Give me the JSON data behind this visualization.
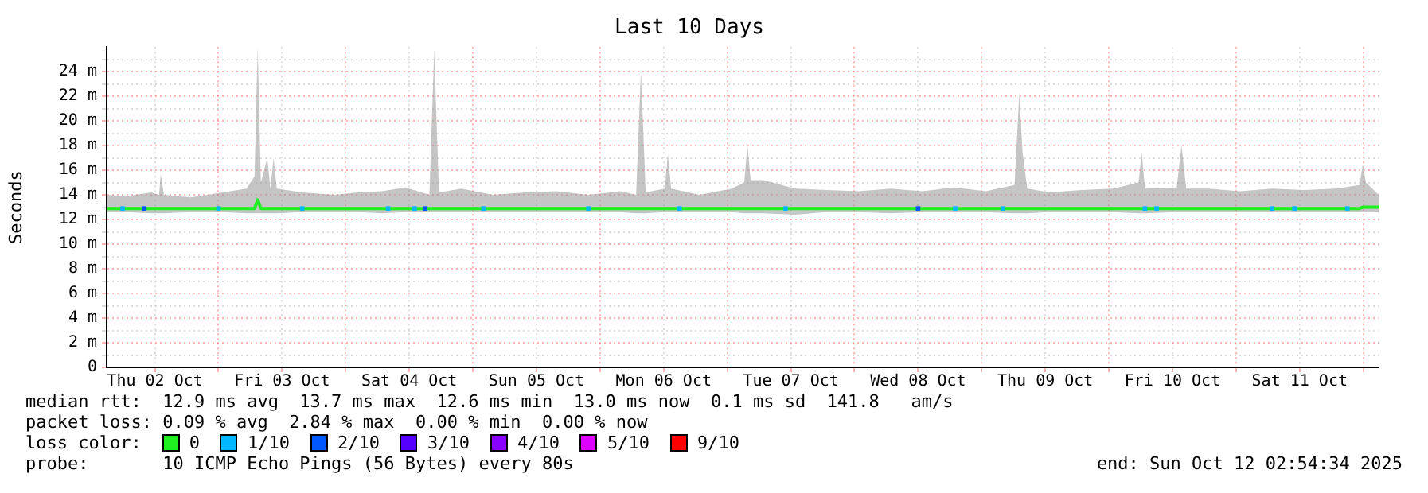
{
  "chart_data": {
    "type": "line",
    "title": "Last 10 Days",
    "ylabel": "Seconds",
    "legend_title": "loss color:",
    "legend": "bottom",
    "grid": true,
    "line_style": "solid",
    "marker": "none",
    "xlim": [
      "2025-10-02T02:54",
      "2025-10-12T02:54"
    ],
    "xticks": [
      {
        "value": "2025-10-02T12:00",
        "label": "Thu 02 Oct"
      },
      {
        "value": "2025-10-03T00:00",
        "label": null
      },
      {
        "value": "2025-10-03T12:00",
        "label": "Fri 03 Oct"
      },
      {
        "value": "2025-10-04T00:00",
        "label": null
      },
      {
        "value": "2025-10-04T12:00",
        "label": "Sat 04 Oct"
      },
      {
        "value": "2025-10-05T00:00",
        "label": null
      },
      {
        "value": "2025-10-05T12:00",
        "label": "Sun 05 Oct"
      },
      {
        "value": "2025-10-06T00:00",
        "label": null
      },
      {
        "value": "2025-10-06T12:00",
        "label": "Mon 06 Oct"
      },
      {
        "value": "2025-10-07T00:00",
        "label": null
      },
      {
        "value": "2025-10-07T12:00",
        "label": "Tue 07 Oct"
      },
      {
        "value": "2025-10-08T00:00",
        "label": null
      },
      {
        "value": "2025-10-08T12:00",
        "label": "Wed 08 Oct"
      },
      {
        "value": "2025-10-09T00:00",
        "label": null
      },
      {
        "value": "2025-10-09T12:00",
        "label": "Thu 09 Oct"
      },
      {
        "value": "2025-10-10T00:00",
        "label": null
      },
      {
        "value": "2025-10-10T12:00",
        "label": "Fri 10 Oct"
      },
      {
        "value": "2025-10-11T00:00",
        "label": null
      },
      {
        "value": "2025-10-11T12:00",
        "label": "Sat 11 Oct"
      },
      {
        "value": "2025-10-12T00:00",
        "label": null
      }
    ],
    "ylim": [
      0,
      26
    ],
    "yticks": [
      {
        "value": 0,
        "label": "0"
      },
      {
        "value": 1,
        "label": null
      },
      {
        "value": 2,
        "label": "2 m"
      },
      {
        "value": 3,
        "label": null
      },
      {
        "value": 4,
        "label": "4 m"
      },
      {
        "value": 5,
        "label": null
      },
      {
        "value": 6,
        "label": "6 m"
      },
      {
        "value": 7,
        "label": null
      },
      {
        "value": 8,
        "label": "8 m"
      },
      {
        "value": 9,
        "label": null
      },
      {
        "value": 10,
        "label": "10 m"
      },
      {
        "value": 11,
        "label": null
      },
      {
        "value": 12,
        "label": "12 m"
      },
      {
        "value": 13,
        "label": null
      },
      {
        "value": 14,
        "label": "14 m"
      },
      {
        "value": 15,
        "label": null
      },
      {
        "value": 16,
        "label": "16 m"
      },
      {
        "value": 17,
        "label": null
      },
      {
        "value": 18,
        "label": "18 m"
      },
      {
        "value": 19,
        "label": null
      },
      {
        "value": 20,
        "label": "20 m"
      },
      {
        "value": 21,
        "label": null
      },
      {
        "value": 22,
        "label": "22 m"
      },
      {
        "value": 23,
        "label": null
      },
      {
        "value": 24,
        "label": "24 m"
      },
      {
        "value": 25,
        "label": null
      }
    ],
    "x": [
      "2025-10-02T02:54",
      "2025-10-02T06:48",
      "2025-10-02T11:18",
      "2025-10-02T12:48",
      "2025-10-02T13:06",
      "2025-10-02T13:42",
      "2025-10-02T18:48",
      "2025-10-03T00:48",
      "2025-10-03T05:18",
      "2025-10-03T06:48",
      "2025-10-03T07:24",
      "2025-10-03T08:00",
      "2025-10-03T09:12",
      "2025-10-03T09:48",
      "2025-10-03T10:24",
      "2025-10-03T11:00",
      "2025-10-03T15:48",
      "2025-10-03T21:48",
      "2025-10-04T02:18",
      "2025-10-04T06:48",
      "2025-10-04T11:18",
      "2025-10-04T15:48",
      "2025-10-04T16:42",
      "2025-10-04T17:36",
      "2025-10-04T21:48",
      "2025-10-05T03:48",
      "2025-10-05T09:48",
      "2025-10-05T15:48",
      "2025-10-05T21:48",
      "2025-10-06T03:48",
      "2025-10-06T06:48",
      "2025-10-06T07:42",
      "2025-10-06T08:36",
      "2025-10-06T12:12",
      "2025-10-06T12:48",
      "2025-10-06T13:24",
      "2025-10-06T18:48",
      "2025-10-07T00:48",
      "2025-10-07T03:12",
      "2025-10-07T03:48",
      "2025-10-07T04:24",
      "2025-10-07T06:48",
      "2025-10-07T12:48",
      "2025-10-07T18:48",
      "2025-10-08T00:48",
      "2025-10-08T06:48",
      "2025-10-08T12:48",
      "2025-10-08T18:48",
      "2025-10-09T00:48",
      "2025-10-09T06:12",
      "2025-10-09T07:06",
      "2025-10-09T07:42",
      "2025-10-09T08:36",
      "2025-10-09T12:48",
      "2025-10-09T18:48",
      "2025-10-10T00:48",
      "2025-10-10T05:36",
      "2025-10-10T06:12",
      "2025-10-10T06:48",
      "2025-10-10T12:48",
      "2025-10-10T13:42",
      "2025-10-10T14:36",
      "2025-10-10T18:48",
      "2025-10-11T00:48",
      "2025-10-11T06:48",
      "2025-10-11T12:48",
      "2025-10-11T18:48",
      "2025-10-11T23:18",
      "2025-10-11T23:54",
      "2025-10-12T00:30",
      "2025-10-12T02:54"
    ],
    "series": [
      {
        "name": "0",
        "color": "#20f020",
        "values": [
          12.9,
          12.9,
          12.9,
          12.9,
          12.9,
          12.9,
          12.9,
          12.9,
          12.9,
          12.9,
          13.6,
          12.9,
          12.9,
          12.9,
          12.9,
          12.9,
          12.9,
          12.9,
          12.9,
          12.9,
          12.9,
          12.9,
          12.9,
          12.9,
          12.9,
          12.9,
          12.9,
          12.9,
          12.9,
          12.9,
          12.9,
          12.9,
          12.9,
          12.9,
          12.9,
          12.9,
          12.9,
          12.9,
          12.9,
          12.9,
          12.9,
          12.9,
          12.9,
          12.9,
          12.9,
          12.9,
          12.9,
          12.9,
          12.9,
          12.9,
          12.9,
          12.9,
          12.9,
          12.9,
          12.9,
          12.9,
          12.9,
          12.9,
          12.9,
          12.9,
          12.9,
          12.9,
          12.9,
          12.9,
          12.9,
          12.9,
          12.9,
          12.9,
          13.0,
          13.0,
          13.0
        ],
        "lower": [
          12.6,
          12.6,
          12.5,
          12.5,
          12.5,
          12.5,
          12.6,
          12.6,
          12.5,
          12.5,
          12.5,
          12.5,
          12.5,
          12.5,
          12.5,
          12.5,
          12.6,
          12.6,
          12.6,
          12.5,
          12.6,
          12.6,
          12.6,
          12.6,
          12.6,
          12.6,
          12.6,
          12.6,
          12.6,
          12.6,
          12.5,
          12.5,
          12.5,
          12.6,
          12.6,
          12.6,
          12.6,
          12.6,
          12.5,
          12.5,
          12.5,
          12.5,
          12.4,
          12.6,
          12.6,
          12.5,
          12.6,
          12.6,
          12.6,
          12.5,
          12.5,
          12.5,
          12.5,
          12.6,
          12.6,
          12.6,
          12.5,
          12.5,
          12.5,
          12.6,
          12.6,
          12.6,
          12.6,
          12.6,
          12.6,
          12.6,
          12.6,
          12.6,
          12.6,
          12.6,
          12.6
        ],
        "upper": [
          14.0,
          13.9,
          14.2,
          14.0,
          15.7,
          14.0,
          13.8,
          14.2,
          14.5,
          15.5,
          26.0,
          15.0,
          17.0,
          14.5,
          17.0,
          14.5,
          14.2,
          14.0,
          14.2,
          14.3,
          14.6,
          14.0,
          25.8,
          14.2,
          14.5,
          14.0,
          14.2,
          14.3,
          14.0,
          14.3,
          14.0,
          24.1,
          14.2,
          14.5,
          17.3,
          14.5,
          14.0,
          14.5,
          15.0,
          18.1,
          15.2,
          15.2,
          14.5,
          14.4,
          14.3,
          14.5,
          14.3,
          14.6,
          14.3,
          14.8,
          22.3,
          17.5,
          14.5,
          14.2,
          14.4,
          14.5,
          15.0,
          17.5,
          14.5,
          14.6,
          18.0,
          14.5,
          14.5,
          14.3,
          14.5,
          14.4,
          14.5,
          14.8,
          16.5,
          15.0,
          14.0
        ]
      },
      {
        "name": "1/10",
        "type": "scatter",
        "color": "#00b8ff",
        "marker": "square",
        "x": [
          "2025-10-02T05:54",
          "2025-10-03T00:00",
          "2025-10-03T15:48",
          "2025-10-04T08:00",
          "2025-10-04T13:00",
          "2025-10-05T02:00",
          "2025-10-05T21:48",
          "2025-10-06T15:00",
          "2025-10-07T11:00",
          "2025-10-08T19:00",
          "2025-10-09T04:00",
          "2025-10-10T06:48",
          "2025-10-10T09:00",
          "2025-10-11T06:48",
          "2025-10-11T11:00",
          "2025-10-11T21:00"
        ],
        "values": [
          12.9,
          12.9,
          12.9,
          12.9,
          12.9,
          12.9,
          12.9,
          12.9,
          12.9,
          12.9,
          12.9,
          12.9,
          12.9,
          12.9,
          12.9,
          12.9
        ]
      },
      {
        "name": "2/10",
        "type": "scatter",
        "color": "#0059ff",
        "marker": "square",
        "x": [
          "2025-10-02T10:00",
          "2025-10-04T15:00",
          "2025-10-08T12:00"
        ],
        "values": [
          12.9,
          12.9,
          12.9
        ]
      },
      {
        "name": "3/10",
        "type": "scatter",
        "color": "#5500ff",
        "marker": "square",
        "values": [
          null,
          null,
          null,
          null,
          null,
          null,
          null,
          null,
          null,
          null,
          null,
          null,
          null,
          null,
          null,
          null,
          null,
          null,
          null,
          null,
          null,
          null,
          null,
          null,
          null,
          null,
          null,
          null,
          null,
          null,
          null,
          null,
          null,
          null,
          null,
          null,
          null,
          null,
          null,
          null,
          null,
          null,
          null,
          null,
          null,
          null,
          null,
          null,
          null,
          null,
          null,
          null,
          null,
          null,
          null,
          null,
          null,
          null,
          null,
          null,
          null,
          null,
          null,
          null,
          null,
          null,
          null,
          null,
          null,
          null,
          null
        ]
      },
      {
        "name": "4/10",
        "type": "scatter",
        "color": "#8800ff",
        "marker": "square",
        "values": [
          null,
          null,
          null,
          null,
          null,
          null,
          null,
          null,
          null,
          null,
          null,
          null,
          null,
          null,
          null,
          null,
          null,
          null,
          null,
          null,
          null,
          null,
          null,
          null,
          null,
          null,
          null,
          null,
          null,
          null,
          null,
          null,
          null,
          null,
          null,
          null,
          null,
          null,
          null,
          null,
          null,
          null,
          null,
          null,
          null,
          null,
          null,
          null,
          null,
          null,
          null,
          null,
          null,
          null,
          null,
          null,
          null,
          null,
          null,
          null,
          null,
          null,
          null,
          null,
          null,
          null,
          null,
          null,
          null,
          null,
          null
        ]
      },
      {
        "name": "5/10",
        "type": "scatter",
        "color": "#dd00ff",
        "marker": "square",
        "values": [
          null,
          null,
          null,
          null,
          null,
          null,
          null,
          null,
          null,
          null,
          null,
          null,
          null,
          null,
          null,
          null,
          null,
          null,
          null,
          null,
          null,
          null,
          null,
          null,
          null,
          null,
          null,
          null,
          null,
          null,
          null,
          null,
          null,
          null,
          null,
          null,
          null,
          null,
          null,
          null,
          null,
          null,
          null,
          null,
          null,
          null,
          null,
          null,
          null,
          null,
          null,
          null,
          null,
          null,
          null,
          null,
          null,
          null,
          null,
          null,
          null,
          null,
          null,
          null,
          null,
          null,
          null,
          null,
          null,
          null,
          null
        ]
      },
      {
        "name": "9/10",
        "type": "scatter",
        "color": "#ff0000",
        "marker": "square",
        "values": [
          null,
          null,
          null,
          null,
          null,
          null,
          null,
          null,
          null,
          null,
          null,
          null,
          null,
          null,
          null,
          null,
          null,
          null,
          null,
          null,
          null,
          null,
          null,
          null,
          null,
          null,
          null,
          null,
          null,
          null,
          null,
          null,
          null,
          null,
          null,
          null,
          null,
          null,
          null,
          null,
          null,
          null,
          null,
          null,
          null,
          null,
          null,
          null,
          null,
          null,
          null,
          null,
          null,
          null,
          null,
          null,
          null,
          null,
          null,
          null,
          null,
          null,
          null,
          null,
          null,
          null,
          null,
          null,
          null,
          null,
          null
        ]
      }
    ],
    "annotations": [
      "median rtt:  12.9 ms avg  13.7 ms max  12.6 ms min  13.0 ms now  0.1 ms sd  141.8   am/s",
      "packet loss: 0.09 % avg  2.84 % max  0.00 % min  0.00 % now",
      "probe:       10 ICMP Echo Pings (56 Bytes) every 80s",
      "end: Sun Oct 12 02:54:34 2025"
    ]
  }
}
